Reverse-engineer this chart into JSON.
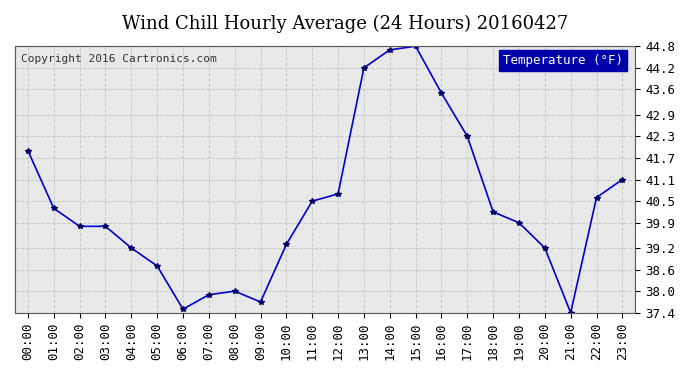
{
  "title": "Wind Chill Hourly Average (24 Hours) 20160427",
  "copyright_text": "Copyright 2016 Cartronics.com",
  "legend_label": "Temperature (°F)",
  "hours": [
    0,
    1,
    2,
    3,
    4,
    5,
    6,
    7,
    8,
    9,
    10,
    11,
    12,
    13,
    14,
    15,
    16,
    17,
    18,
    19,
    20,
    21,
    22,
    23
  ],
  "x_labels": [
    "00:00",
    "01:00",
    "02:00",
    "03:00",
    "04:00",
    "05:00",
    "06:00",
    "07:00",
    "08:00",
    "09:00",
    "10:00",
    "11:00",
    "12:00",
    "13:00",
    "14:00",
    "15:00",
    "16:00",
    "17:00",
    "18:00",
    "19:00",
    "20:00",
    "21:00",
    "22:00",
    "23:00"
  ],
  "values": [
    41.9,
    40.3,
    39.8,
    39.8,
    39.2,
    38.7,
    37.5,
    37.9,
    38.0,
    37.7,
    39.3,
    40.5,
    40.7,
    44.2,
    44.7,
    44.8,
    43.5,
    42.3,
    40.2,
    39.9,
    39.2,
    37.4,
    40.6,
    41.1
  ],
  "ylim_min": 37.4,
  "ylim_max": 44.8,
  "yticks": [
    37.4,
    38.0,
    38.6,
    39.2,
    39.9,
    40.5,
    41.1,
    41.7,
    42.3,
    42.9,
    43.6,
    44.2,
    44.8
  ],
  "line_color": "#0000cc",
  "marker_color": "#000066",
  "bg_color": "#ffffff",
  "plot_bg_color": "#e8e8e8",
  "grid_color": "#c8c8c8",
  "legend_bg": "#0000aa",
  "legend_text_color": "#ffffff",
  "title_fontsize": 13,
  "copyright_fontsize": 8,
  "tick_fontsize": 9,
  "legend_fontsize": 9
}
